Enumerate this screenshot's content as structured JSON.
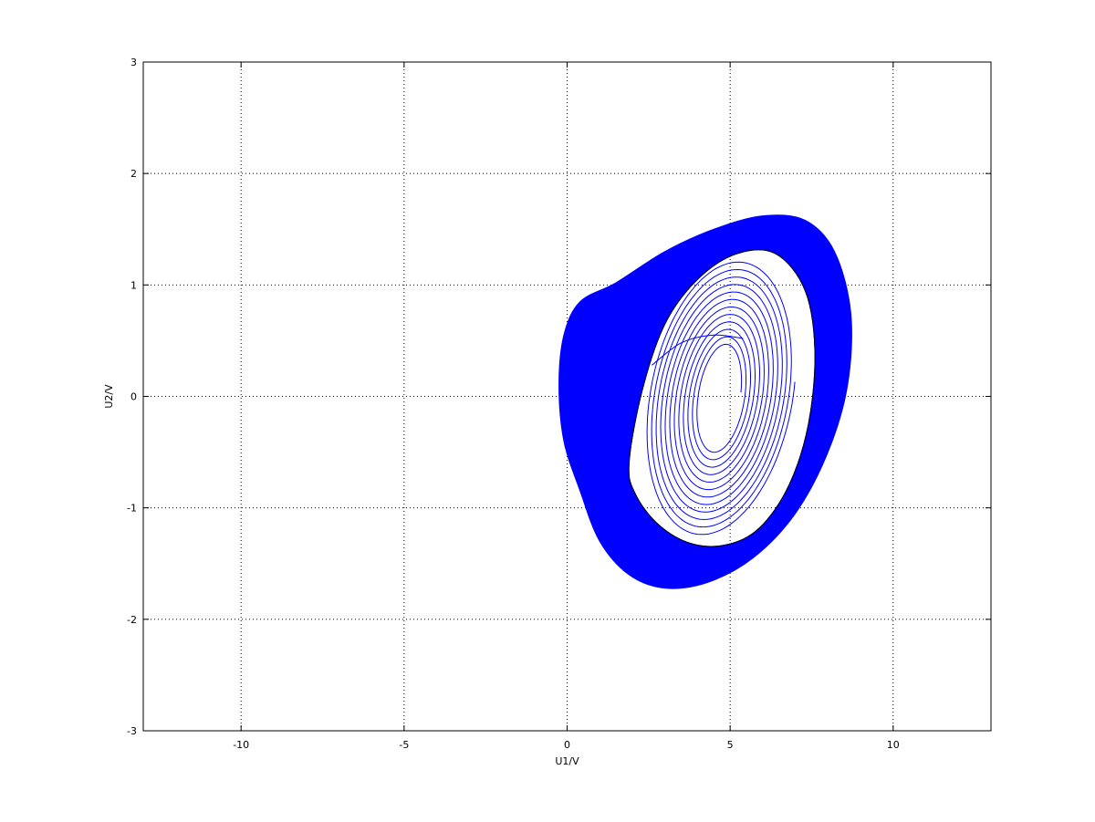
{
  "chart_data": {
    "type": "line",
    "title": "",
    "xlabel": "U1/V",
    "ylabel": "U2/V",
    "xlim": [
      -13,
      13
    ],
    "ylim": [
      -3,
      3
    ],
    "xticks": [
      -10,
      -5,
      0,
      5,
      10
    ],
    "yticks": [
      -3,
      -2,
      -1,
      0,
      1,
      2,
      3
    ],
    "grid": true,
    "legend": "none",
    "series": [
      {
        "color": "#0000ff",
        "description_band": {
          "outer_boundary": [
            [
              -0.25,
              0.1
            ],
            [
              -0.1,
              0.55
            ],
            [
              0.4,
              0.85
            ],
            [
              1.5,
              1.02
            ],
            [
              3.0,
              1.3
            ],
            [
              4.5,
              1.5
            ],
            [
              6.0,
              1.62
            ],
            [
              7.3,
              1.58
            ],
            [
              8.2,
              1.3
            ],
            [
              8.7,
              0.75
            ],
            [
              8.6,
              0.1
            ],
            [
              8.0,
              -0.5
            ],
            [
              7.0,
              -1.05
            ],
            [
              5.7,
              -1.45
            ],
            [
              4.3,
              -1.67
            ],
            [
              3.0,
              -1.72
            ],
            [
              1.9,
              -1.6
            ],
            [
              1.0,
              -1.3
            ],
            [
              0.4,
              -0.85
            ],
            [
              -0.1,
              -0.4
            ]
          ],
          "inner_boundary": [
            [
              1.9,
              -0.6
            ],
            [
              2.3,
              0.05
            ],
            [
              3.0,
              0.65
            ],
            [
              4.0,
              1.05
            ],
            [
              5.2,
              1.28
            ],
            [
              6.4,
              1.28
            ],
            [
              7.3,
              0.95
            ],
            [
              7.6,
              0.4
            ],
            [
              7.4,
              -0.25
            ],
            [
              6.8,
              -0.8
            ],
            [
              5.9,
              -1.18
            ],
            [
              4.9,
              -1.33
            ],
            [
              3.8,
              -1.32
            ],
            [
              2.8,
              -1.15
            ],
            [
              2.1,
              -0.88
            ]
          ]
        },
        "inner_spiral": {
          "center": [
            4.7,
            0.0
          ],
          "rx_range": [
            0.8,
            2.9
          ],
          "ry_range": [
            0.45,
            1.25
          ],
          "turns": 12,
          "tilt_deg": 22
        },
        "tail_segment": [
          [
            2.6,
            0.28
          ],
          [
            3.5,
            0.48
          ],
          [
            4.5,
            0.55
          ],
          [
            5.4,
            0.52
          ]
        ]
      }
    ]
  }
}
